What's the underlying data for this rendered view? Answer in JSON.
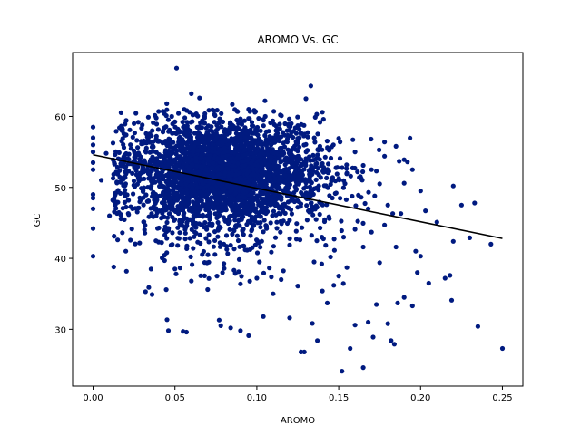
{
  "chart_data": {
    "type": "scatter",
    "title": "AROMO Vs. GC",
    "xlabel": "AROMO",
    "ylabel": "GC",
    "xlim": [
      -0.0125,
      0.2625
    ],
    "ylim": [
      22.0,
      69.0
    ],
    "xticks": [
      "0.00",
      "0.05",
      "0.10",
      "0.15",
      "0.20",
      "0.25"
    ],
    "yticks": [
      "30",
      "40",
      "50",
      "60"
    ],
    "grid": false,
    "point_color": "#001a80",
    "line_color": "#000000",
    "trend_line": {
      "x": [
        0.0,
        0.25
      ],
      "y": [
        54.6,
        42.8
      ]
    },
    "cluster": {
      "center_x": 0.08,
      "center_y": 52.5,
      "sd_x": 0.03,
      "sd_y": 3.5,
      "count": 3200
    },
    "points": [
      [
        0.0,
        58.5
      ],
      [
        0.0,
        57.0
      ],
      [
        0.0,
        56.0
      ],
      [
        0.0,
        55.0
      ],
      [
        0.0,
        53.5
      ],
      [
        0.0,
        52.5
      ],
      [
        0.0,
        49.0
      ],
      [
        0.0,
        48.5
      ],
      [
        0.0,
        47.0
      ],
      [
        0.0,
        44.2
      ],
      [
        0.0,
        40.3
      ],
      [
        0.051,
        66.8
      ],
      [
        0.133,
        64.3
      ],
      [
        0.06,
        63.2
      ],
      [
        0.13,
        62.5
      ],
      [
        0.105,
        62.2
      ],
      [
        0.032,
        35.3
      ],
      [
        0.034,
        35.9
      ],
      [
        0.036,
        34.9
      ],
      [
        0.046,
        29.8
      ],
      [
        0.055,
        29.7
      ],
      [
        0.057,
        29.6
      ],
      [
        0.077,
        31.3
      ],
      [
        0.078,
        30.5
      ],
      [
        0.084,
        30.2
      ],
      [
        0.09,
        29.8
      ],
      [
        0.095,
        29.1
      ],
      [
        0.104,
        31.8
      ],
      [
        0.12,
        31.6
      ],
      [
        0.127,
        26.8
      ],
      [
        0.129,
        26.8
      ],
      [
        0.137,
        28.4
      ],
      [
        0.143,
        33.7
      ],
      [
        0.152,
        24.1
      ],
      [
        0.157,
        27.3
      ],
      [
        0.16,
        30.6
      ],
      [
        0.165,
        24.6
      ],
      [
        0.168,
        31.0
      ],
      [
        0.171,
        28.9
      ],
      [
        0.173,
        33.5
      ],
      [
        0.18,
        30.8
      ],
      [
        0.182,
        28.4
      ],
      [
        0.184,
        27.9
      ],
      [
        0.186,
        33.7
      ],
      [
        0.19,
        34.5
      ],
      [
        0.195,
        33.3
      ],
      [
        0.178,
        56.4
      ],
      [
        0.178,
        54.4
      ],
      [
        0.185,
        55.8
      ],
      [
        0.17,
        52.5
      ],
      [
        0.173,
        52.3
      ],
      [
        0.175,
        50.5
      ],
      [
        0.172,
        48.8
      ],
      [
        0.18,
        47.5
      ],
      [
        0.183,
        46.3
      ],
      [
        0.19,
        53.9
      ],
      [
        0.192,
        53.6
      ],
      [
        0.195,
        52.5
      ],
      [
        0.19,
        50.6
      ],
      [
        0.2,
        49.5
      ],
      [
        0.203,
        46.7
      ],
      [
        0.21,
        45.1
      ],
      [
        0.215,
        37.2
      ],
      [
        0.218,
        37.6
      ],
      [
        0.219,
        34.1
      ],
      [
        0.22,
        50.2
      ],
      [
        0.22,
        42.4
      ],
      [
        0.225,
        47.5
      ],
      [
        0.23,
        42.9
      ],
      [
        0.233,
        47.8
      ],
      [
        0.235,
        30.4
      ],
      [
        0.243,
        42.0
      ],
      [
        0.25,
        27.3
      ],
      [
        0.2,
        40.3
      ],
      [
        0.198,
        38.0
      ],
      [
        0.185,
        41.6
      ],
      [
        0.175,
        39.4
      ],
      [
        0.17,
        43.7
      ],
      [
        0.165,
        41.6
      ],
      [
        0.16,
        44.1
      ],
      [
        0.155,
        38.7
      ],
      [
        0.15,
        37.5
      ],
      [
        0.147,
        36.2
      ],
      [
        0.14,
        35.4
      ],
      [
        0.135,
        39.5
      ],
      [
        0.145,
        40.2
      ],
      [
        0.125,
        36.1
      ],
      [
        0.11,
        35.0
      ],
      [
        0.1,
        37.2
      ],
      [
        0.09,
        36.4
      ],
      [
        0.07,
        35.6
      ],
      [
        0.06,
        36.8
      ],
      [
        0.05,
        38.5
      ],
      [
        0.045,
        40.8
      ],
      [
        0.04,
        42.3
      ],
      [
        0.02,
        41.0
      ],
      [
        0.015,
        42.6
      ],
      [
        0.01,
        46.0
      ],
      [
        0.012,
        48.2
      ],
      [
        0.005,
        51.0
      ],
      [
        0.008,
        54.8
      ],
      [
        0.018,
        58.2
      ],
      [
        0.025,
        59.0
      ],
      [
        0.03,
        58.8
      ],
      [
        0.04,
        60.7
      ],
      [
        0.045,
        61.8
      ],
      [
        0.065,
        62.6
      ],
      [
        0.085,
        61.7
      ],
      [
        0.095,
        61.0
      ],
      [
        0.115,
        60.1
      ],
      [
        0.125,
        58.7
      ],
      [
        0.14,
        60.6
      ],
      [
        0.15,
        56.9
      ],
      [
        0.16,
        55.0
      ],
      [
        0.165,
        53.1
      ],
      [
        0.155,
        52.0
      ],
      [
        0.168,
        47.0
      ],
      [
        0.178,
        44.7
      ],
      [
        0.188,
        46.3
      ],
      [
        0.197,
        41.0
      ],
      [
        0.205,
        36.5
      ]
    ]
  }
}
